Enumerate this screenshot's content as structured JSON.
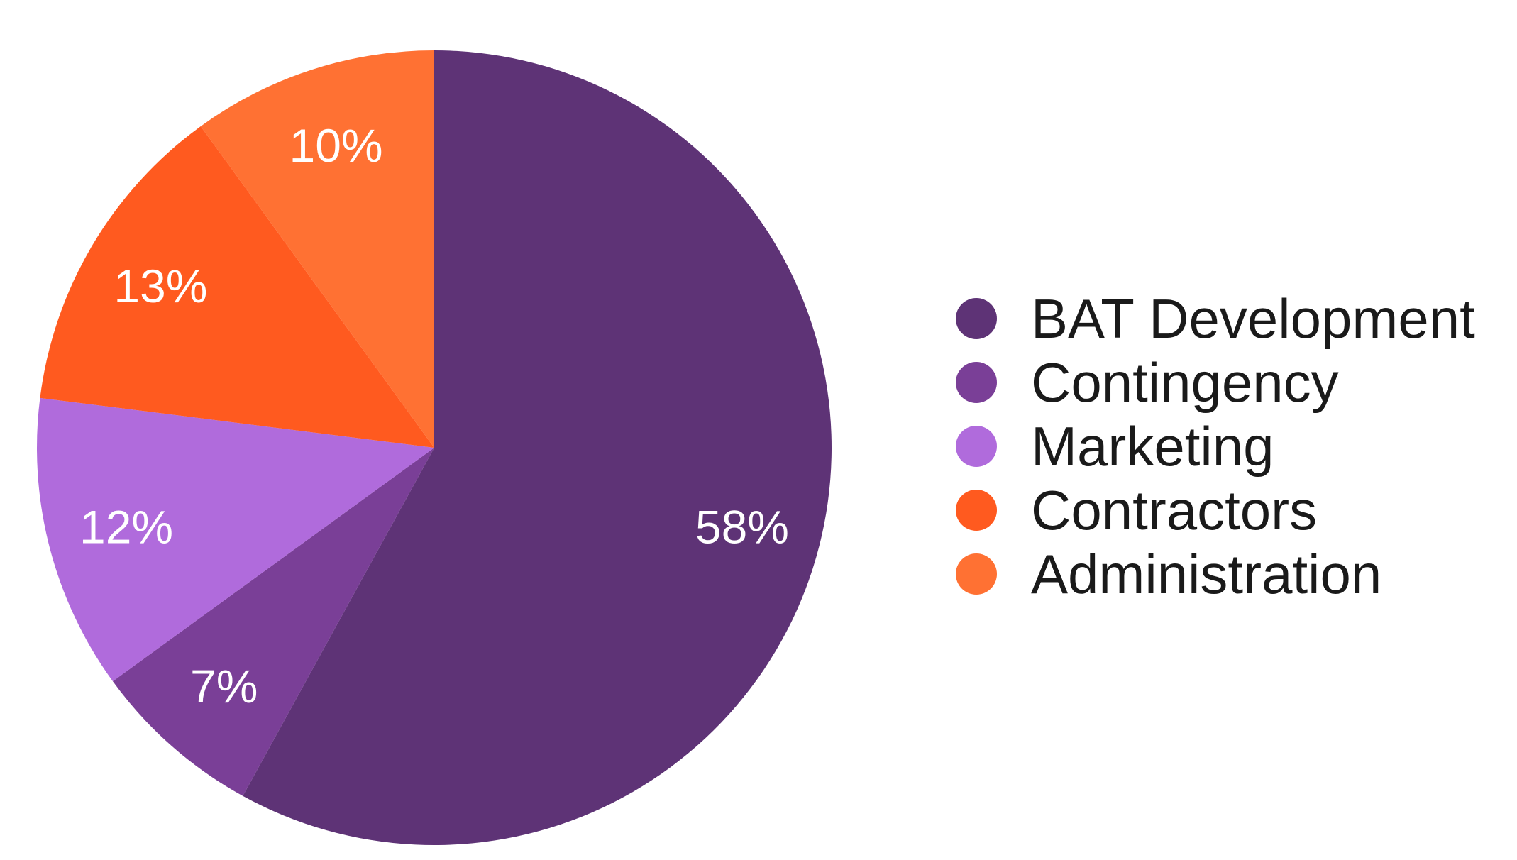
{
  "chart_data": {
    "type": "pie",
    "title": "",
    "start": "12 o'clock",
    "direction": "clockwise",
    "legend_position": "right",
    "slices": [
      {
        "label": "BAT Development",
        "value": 58,
        "display": "58%",
        "color": "#5e3376"
      },
      {
        "label": "Contingency",
        "value": 7,
        "display": "7%",
        "color": "#7a3f97"
      },
      {
        "label": "Marketing",
        "value": 12,
        "display": "12%",
        "color": "#b06bdc"
      },
      {
        "label": "Contractors",
        "value": 13,
        "display": "13%",
        "color": "#ff5a1f"
      },
      {
        "label": "Administration",
        "value": 10,
        "display": "10%",
        "color": "#ff7133"
      }
    ]
  }
}
